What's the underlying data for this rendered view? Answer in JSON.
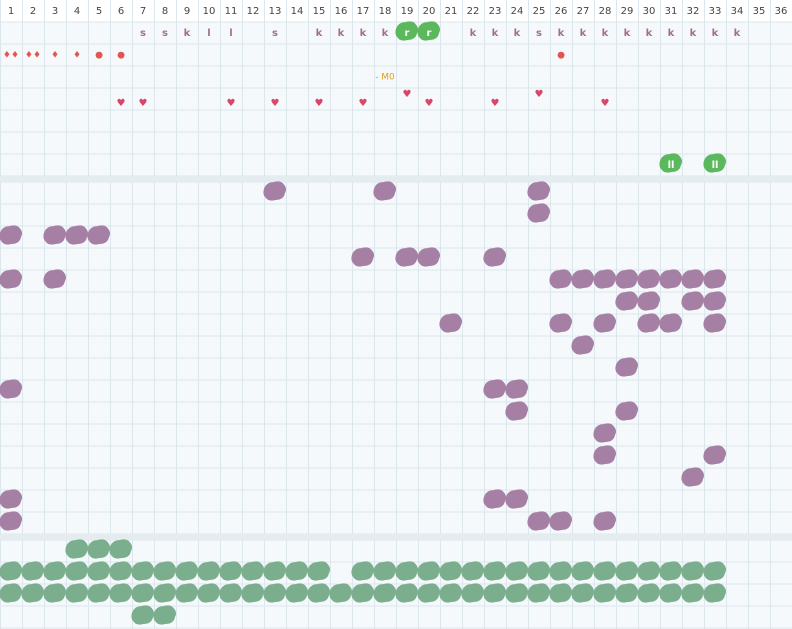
{
  "columns": [
    1,
    2,
    3,
    4,
    5,
    6,
    7,
    8,
    9,
    10,
    11,
    12,
    13,
    14,
    15,
    16,
    17,
    18,
    19,
    20,
    21,
    22,
    23,
    24,
    25,
    26,
    27,
    28,
    29,
    30,
    31,
    32,
    33,
    34,
    35,
    36
  ],
  "letter_row": [
    null,
    null,
    null,
    null,
    null,
    null,
    "s",
    "s",
    "k",
    "l",
    "l",
    null,
    "s",
    null,
    "k",
    "k",
    "k",
    "k",
    "r",
    "r",
    null,
    "k",
    "k",
    "k",
    "s",
    "k",
    "k",
    "k",
    "k",
    "k",
    "k",
    "k",
    "k",
    "k",
    null,
    null
  ],
  "symbol_row": [
    "♦♦",
    "♦♦",
    "♦",
    "♦",
    "●",
    "●",
    null,
    null,
    null,
    null,
    null,
    null,
    null,
    null,
    null,
    null,
    null,
    null,
    null,
    null,
    null,
    null,
    null,
    null,
    null,
    "●",
    null,
    null,
    null,
    null,
    null,
    null,
    null,
    null,
    null,
    null
  ],
  "marker_row": [
    null,
    null,
    null,
    null,
    null,
    null,
    null,
    null,
    null,
    null,
    null,
    null,
    null,
    null,
    null,
    null,
    null,
    "- M0",
    null,
    null,
    null,
    null,
    null,
    null,
    null,
    null,
    null,
    null,
    null,
    null,
    null,
    null,
    null,
    null,
    null,
    null
  ],
  "heart_row": [
    null,
    null,
    null,
    null,
    null,
    "♥",
    "♥",
    null,
    null,
    null,
    "♥",
    null,
    "♥",
    null,
    "♥",
    null,
    "♥",
    null,
    "♥",
    "♥",
    null,
    null,
    "♥",
    null,
    "♥",
    null,
    null,
    "♥",
    null,
    null,
    null,
    null,
    null,
    null,
    null,
    null
  ],
  "pause_row": [
    null,
    null,
    null,
    null,
    null,
    null,
    null,
    null,
    null,
    null,
    null,
    null,
    null,
    null,
    null,
    null,
    null,
    null,
    null,
    null,
    null,
    null,
    null,
    null,
    null,
    null,
    null,
    null,
    null,
    null,
    "ll",
    null,
    "ll",
    null,
    null,
    null
  ]
}
